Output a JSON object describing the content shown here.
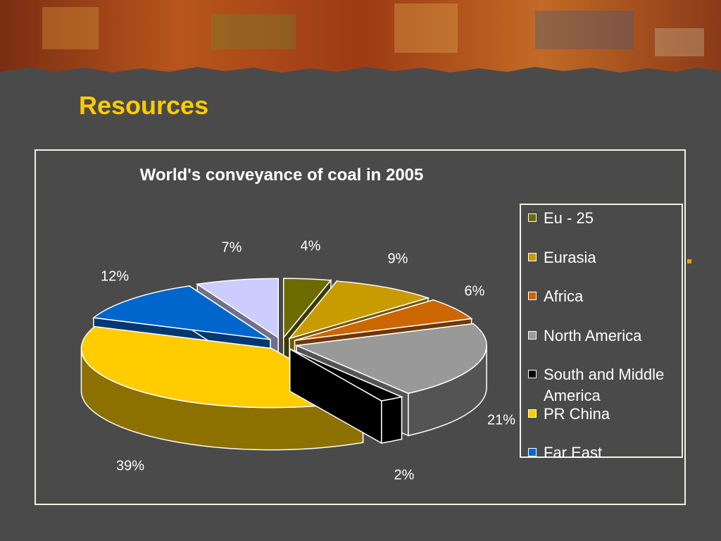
{
  "slide": {
    "title": "Resources"
  },
  "chart_data": {
    "type": "pie",
    "title": "World's conveyance of coal in 2005",
    "legend_position": "right",
    "slices": [
      {
        "name": "Eu - 25",
        "value": 4,
        "label": "4%",
        "color": "#6b6b00"
      },
      {
        "name": "Eurasia",
        "value": 9,
        "label": "9%",
        "color": "#c89b00"
      },
      {
        "name": "Africa",
        "value": 6,
        "label": "6%",
        "color": "#cc6600"
      },
      {
        "name": "North America",
        "value": 21,
        "label": "21%",
        "color": "#999999"
      },
      {
        "name": "South and Middle America",
        "value": 2,
        "label": "2%",
        "color": "#000000"
      },
      {
        "name": "PR China",
        "value": 39,
        "label": "39%",
        "color": "#ffcc00"
      },
      {
        "name": "Far East",
        "value": 12,
        "label": "12%",
        "color": "#0066cc"
      },
      {
        "name": "",
        "value": 7,
        "label": "7%",
        "color": "#ccccff"
      }
    ]
  }
}
